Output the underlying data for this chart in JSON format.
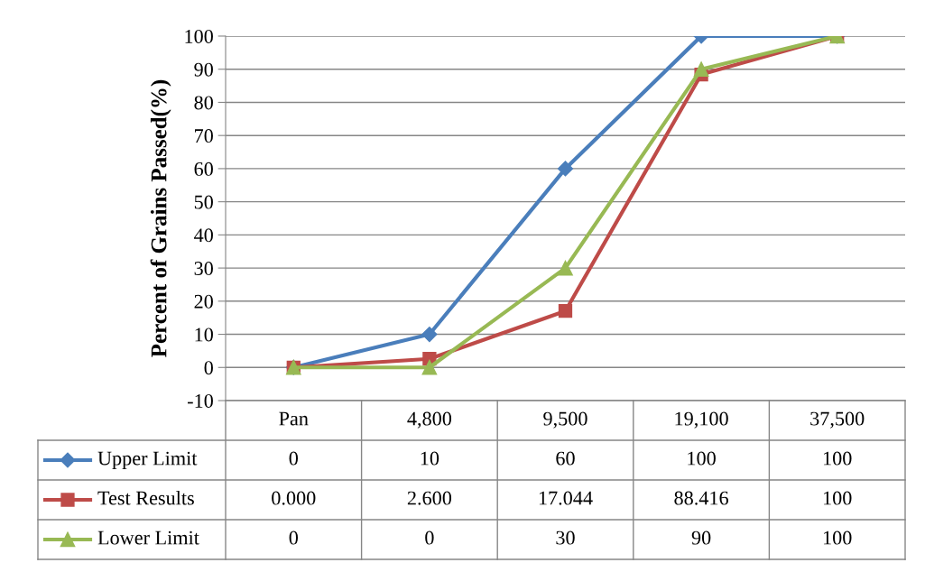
{
  "chart_data": {
    "type": "line",
    "ylabel": "Percent of Grains Passed(%)",
    "categories": [
      "Pan",
      "4,800",
      "9,500",
      "19,100",
      "37,500"
    ],
    "ylim": [
      -10,
      100
    ],
    "yticks": [
      -10,
      0,
      10,
      20,
      30,
      40,
      50,
      60,
      70,
      80,
      90,
      100
    ],
    "grid": "y",
    "legend": "bottom left",
    "series": [
      {
        "name": "Upper Limit",
        "color": "#4a7ebb",
        "marker": "diamond",
        "values": [
          0,
          10,
          60,
          100,
          100
        ],
        "value_labels": [
          "0",
          "10",
          "60",
          "100",
          "100"
        ]
      },
      {
        "name": "Test Results",
        "color": "#be4b48",
        "marker": "square",
        "values": [
          0.0,
          2.6,
          17.044,
          88.416,
          100
        ],
        "value_labels": [
          "0.000",
          "2.600",
          "17.044",
          "88.416",
          "100"
        ]
      },
      {
        "name": "Lower Limit",
        "color": "#98b954",
        "marker": "triangle",
        "values": [
          0,
          0,
          30,
          90,
          100
        ],
        "value_labels": [
          "0",
          "0",
          "30",
          "90",
          "100"
        ]
      }
    ]
  }
}
